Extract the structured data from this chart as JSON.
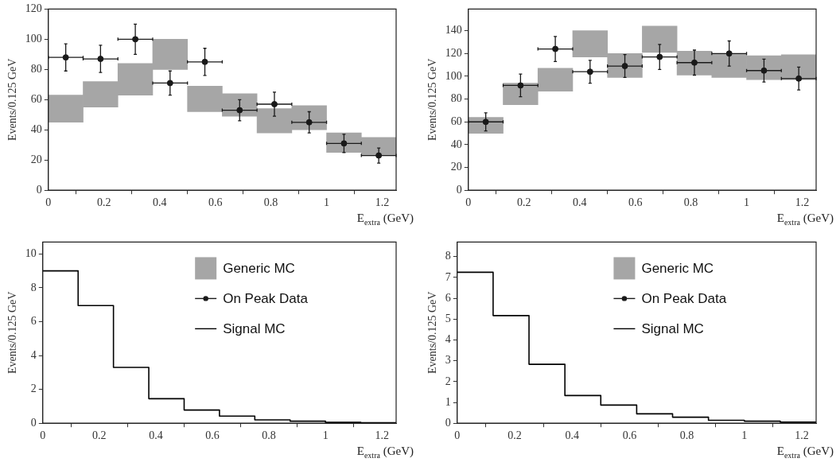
{
  "chart_data": [
    {
      "type": "bar",
      "xlabel": "E$_{extra}$ (GeV)",
      "ylabel": "Events/0.125 GeV",
      "xlim": [
        0,
        1.25
      ],
      "xticks": [
        0,
        0.2,
        0.4,
        0.6,
        0.8,
        1,
        1.2
      ],
      "ylim": [
        0,
        120
      ],
      "yticks": [
        0,
        20,
        40,
        60,
        80,
        100,
        120
      ],
      "marker": "circle",
      "series": [
        {
          "color": "#a6a6a6",
          "x": [
            0.0625,
            0.1875,
            0.3125,
            0.4375,
            0.5625,
            0.6875,
            0.8125,
            0.9375,
            1.0625,
            1.1875
          ],
          "base": [
            45,
            55,
            63,
            80,
            52,
            49,
            38,
            40,
            25,
            23
          ],
          "values": [
            18,
            17,
            21,
            20,
            17,
            15,
            16,
            16,
            13,
            12
          ]
        },
        {
          "type": "scatter",
          "color": "#1a1a1a",
          "x": [
            0.0625,
            0.1875,
            0.3125,
            0.4375,
            0.5625,
            0.6875,
            0.8125,
            0.9375,
            1.0625,
            1.1875
          ],
          "values": [
            88,
            87,
            100,
            71,
            85,
            53,
            57,
            45,
            31,
            23
          ],
          "errors": [
            9,
            9,
            10,
            8,
            9,
            7,
            8,
            7,
            6,
            5
          ],
          "xerrors": [
            0.0625,
            0.0625,
            0.0625,
            0.0625,
            0.0625,
            0.0625,
            0.0625,
            0.0625,
            0.0625,
            0.0625
          ]
        }
      ]
    },
    {
      "type": "bar",
      "xlabel": "E$_{extra}$ (GeV)",
      "ylabel": "Events/0.125 GeV",
      "xlim": [
        0,
        1.25
      ],
      "xticks": [
        0,
        0.2,
        0.4,
        0.6,
        0.8,
        1,
        1.2
      ],
      "ylim": [
        0,
        159
      ],
      "yticks": [
        0,
        20,
        40,
        60,
        80,
        100,
        120,
        140
      ],
      "marker": "circle",
      "series": [
        {
          "color": "#a6a6a6",
          "x": [
            0.0625,
            0.1875,
            0.3125,
            0.4375,
            0.5625,
            0.6875,
            0.8125,
            0.9375,
            1.0625,
            1.1875
          ],
          "base": [
            50,
            75,
            87,
            117,
            99,
            121,
            101,
            99,
            97,
            97
          ],
          "values": [
            14,
            19,
            20,
            23,
            21,
            23,
            21,
            21,
            21,
            22
          ]
        },
        {
          "type": "scatter",
          "color": "#1a1a1a",
          "x": [
            0.0625,
            0.1875,
            0.3125,
            0.4375,
            0.5625,
            0.6875,
            0.8125,
            0.9375,
            1.0625,
            1.1875
          ],
          "values": [
            60,
            92,
            124,
            104,
            109,
            117,
            112,
            120,
            105,
            98
          ],
          "errors": [
            8,
            10,
            11,
            10,
            10,
            11,
            11,
            11,
            10,
            10
          ],
          "xerrors": [
            0.0625,
            0.0625,
            0.0625,
            0.0625,
            0.0625,
            0.0625,
            0.0625,
            0.0625,
            0.0625,
            0.0625
          ]
        }
      ]
    },
    {
      "type": "histogram",
      "xlabel": "E$_{extra}$ (GeV)",
      "ylabel": "Events/0.125 GeV",
      "xlim": [
        0,
        1.25
      ],
      "xticks": [
        0,
        0.2,
        0.4,
        0.6,
        0.8,
        1,
        1.2
      ],
      "ylim": [
        0,
        10.7
      ],
      "yticks": [
        0,
        2,
        4,
        6,
        8,
        10
      ],
      "marker": "circle",
      "legend": "top right",
      "bins": [
        0,
        0.125,
        0.25,
        0.375,
        0.5,
        0.625,
        0.75,
        0.875,
        1,
        1.125,
        1.25
      ],
      "series": [
        {
          "type": "bar",
          "name": "Generic MC",
          "color": "#a6a6a6",
          "values": [
            null,
            null,
            null,
            null,
            null,
            null,
            null,
            null,
            null,
            null
          ]
        },
        {
          "type": "scatter",
          "name": "On Peak Data",
          "color": "#1a1a1a",
          "values": [
            null,
            null,
            null,
            null,
            null,
            null,
            null,
            null,
            null,
            null
          ]
        },
        {
          "name": "Signal MC",
          "color": "#000000",
          "values": [
            9,
            6.95,
            3.3,
            1.45,
            0.78,
            0.42,
            0.2,
            0.12,
            0.05,
            0.03
          ]
        }
      ]
    },
    {
      "type": "histogram",
      "xlabel": "E$_{extra}$ (GeV)",
      "ylabel": "Events/0.125 GeV",
      "xlim": [
        0,
        1.25
      ],
      "xticks": [
        0,
        0.2,
        0.4,
        0.6,
        0.8,
        1,
        1.2
      ],
      "ylim": [
        0,
        8.7
      ],
      "yticks": [
        0,
        1,
        2,
        3,
        4,
        5,
        6,
        7,
        8
      ],
      "marker": "circle",
      "legend": "top right",
      "bins": [
        0,
        0.125,
        0.25,
        0.375,
        0.5,
        0.625,
        0.75,
        0.875,
        1,
        1.125,
        1.25
      ],
      "series": [
        {
          "type": "bar",
          "name": "Generic MC",
          "color": "#a6a6a6",
          "values": [
            null,
            null,
            null,
            null,
            null,
            null,
            null,
            null,
            null,
            null
          ]
        },
        {
          "type": "scatter",
          "name": "On Peak Data",
          "color": "#1a1a1a",
          "values": [
            null,
            null,
            null,
            null,
            null,
            null,
            null,
            null,
            null,
            null
          ]
        },
        {
          "name": "Signal MC",
          "color": "#000000",
          "values": [
            7.25,
            5.17,
            2.83,
            1.33,
            0.87,
            0.45,
            0.29,
            0.14,
            0.1,
            0.05
          ]
        }
      ]
    }
  ]
}
